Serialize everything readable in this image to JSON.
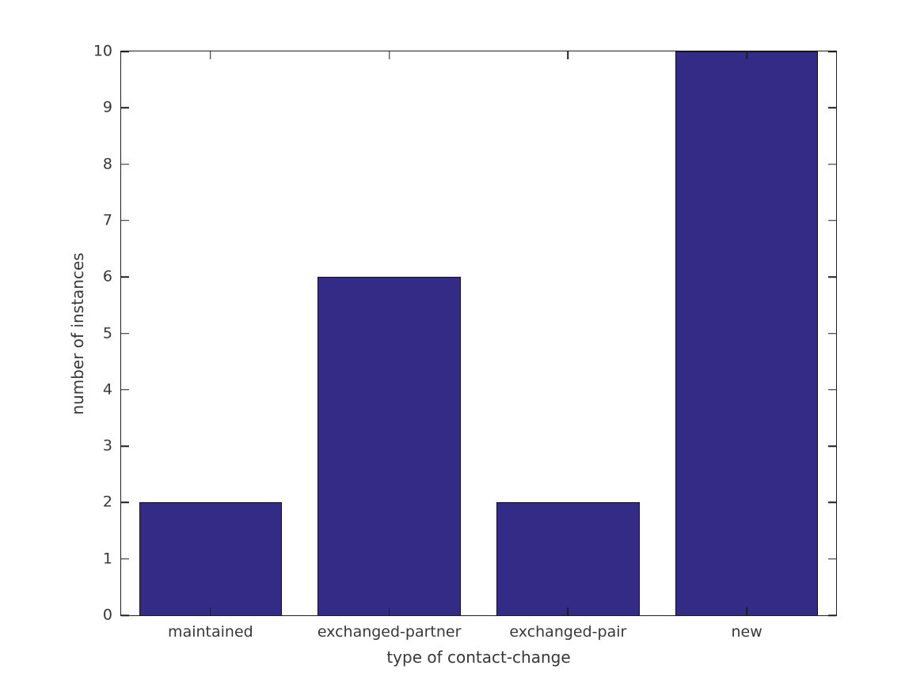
{
  "chart_data": {
    "type": "bar",
    "title": "",
    "categories": [
      "maintained",
      "exchanged-partner",
      "exchanged-pair",
      "new"
    ],
    "values": [
      2,
      6,
      2,
      10
    ],
    "xlabel": "type of contact-change",
    "ylabel": "number of instances",
    "ylim": [
      0,
      10
    ],
    "yticks": [
      0,
      1,
      2,
      3,
      4,
      5,
      6,
      7,
      8,
      9,
      10
    ],
    "grid": false,
    "legend": "none",
    "bar_width_fraction": 0.8,
    "colors": {
      "bar_fill": "#342b86",
      "bar_edge": "#111111",
      "axis": "#1f1f1f",
      "tick_label": "#383838",
      "background": "#ffffff"
    }
  }
}
